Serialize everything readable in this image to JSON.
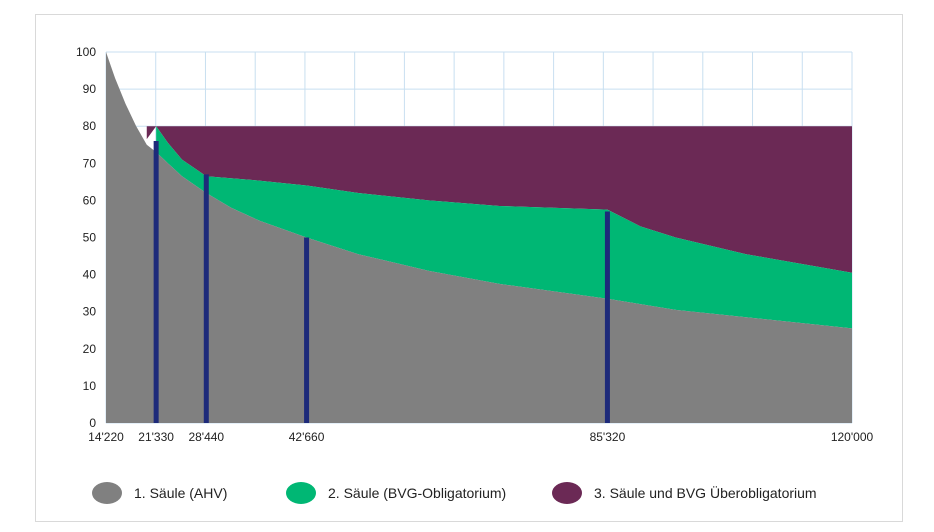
{
  "chart_data": {
    "type": "area",
    "x_ticks": [
      {
        "value": 14220,
        "label": "14'220"
      },
      {
        "value": 21330,
        "label": "21'330"
      },
      {
        "value": 28440,
        "label": "28'440"
      },
      {
        "value": 42660,
        "label": "42'660"
      },
      {
        "value": 85320,
        "label": "85'320"
      },
      {
        "value": 120000,
        "label": "120'000"
      }
    ],
    "y_ticks": [
      0,
      10,
      20,
      30,
      40,
      50,
      60,
      70,
      80,
      90,
      100
    ],
    "xlim": [
      14220,
      120000
    ],
    "ylim": [
      0,
      100
    ],
    "grid": true,
    "legend_position": "bottom",
    "series": [
      {
        "name": "1. Säule (AHV)",
        "color": "#808080",
        "points": [
          [
            14220,
            100
          ],
          [
            15500,
            93
          ],
          [
            17000,
            86
          ],
          [
            18500,
            80
          ],
          [
            20000,
            75
          ],
          [
            21330,
            73
          ],
          [
            23000,
            70
          ],
          [
            25000,
            66.5
          ],
          [
            28440,
            62
          ],
          [
            32000,
            58
          ],
          [
            36000,
            54.5
          ],
          [
            42660,
            50
          ],
          [
            50000,
            45.5
          ],
          [
            60000,
            41
          ],
          [
            70000,
            37.5
          ],
          [
            85320,
            33.5
          ],
          [
            95000,
            30.5
          ],
          [
            105000,
            28.5
          ],
          [
            120000,
            25.5
          ]
        ]
      },
      {
        "name": "2. Säule (BVG-Obligatorium)",
        "color": "#00b774",
        "points": [
          [
            21330,
            80
          ],
          [
            23000,
            75.5
          ],
          [
            25000,
            71
          ],
          [
            28440,
            66.5
          ],
          [
            35000,
            65.5
          ],
          [
            42660,
            64
          ],
          [
            50000,
            62
          ],
          [
            60000,
            60
          ],
          [
            70000,
            58.5
          ],
          [
            85320,
            57.5
          ],
          [
            90000,
            53
          ],
          [
            95000,
            50
          ],
          [
            105000,
            45.5
          ],
          [
            120000,
            40.5
          ]
        ]
      },
      {
        "name": "3. Säule und BVG Überobligatorium",
        "color": "#6b2955",
        "points": [
          [
            20000,
            80
          ],
          [
            120000,
            80
          ]
        ]
      }
    ],
    "marker_lines": {
      "color": "#1d2a7a",
      "lines": [
        {
          "x": 21330,
          "y": 76
        },
        {
          "x": 28440,
          "y": 67
        },
        {
          "x": 42660,
          "y": 50
        },
        {
          "x": 85320,
          "y": 57
        }
      ]
    }
  }
}
